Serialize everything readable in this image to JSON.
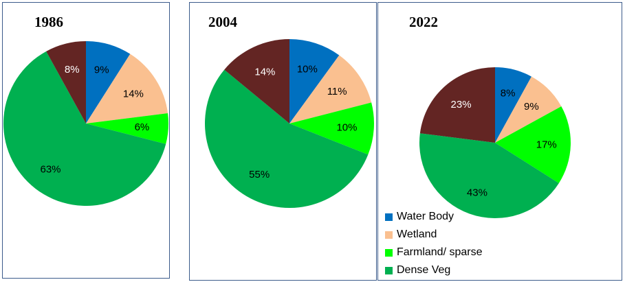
{
  "chart_data": [
    {
      "type": "pie",
      "title": "1986",
      "values": [
        9,
        14,
        6,
        63,
        8
      ]
    },
    {
      "type": "pie",
      "title": "2004",
      "values": [
        10,
        11,
        10,
        55,
        14
      ]
    },
    {
      "type": "pie",
      "title": "2022",
      "values": [
        8,
        9,
        17,
        43,
        23
      ]
    }
  ],
  "categories": [
    "Water Body",
    "Wetland",
    "Farmland/ sparse",
    "Dense Veg",
    ""
  ],
  "colors": [
    "#0070C0",
    "#FAC090",
    "#00FF00",
    "#00B050",
    "#632523"
  ],
  "legend": [
    "Water Body",
    "Wetland",
    "Farmland/ sparse",
    "Dense Veg"
  ]
}
